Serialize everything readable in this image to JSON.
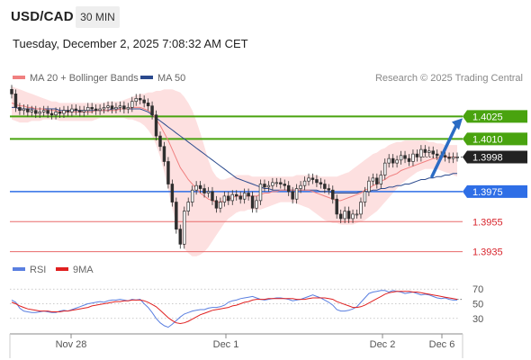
{
  "header": {
    "symbol": "USD/CAD",
    "timeframe": "30 MIN",
    "datetime": "Tuesday, December 2, 2025 7:08:32 AM CET"
  },
  "legend": {
    "ma20_label": "MA 20 + Bollinger Bands",
    "ma50_label": "MA 50",
    "rsi_label": "RSI",
    "rsi_ma_label": "9MA",
    "copyright": "Research © 2025 Trading Central"
  },
  "colors": {
    "ma20": "#f08080",
    "ma50": "#2b4a8e",
    "band_fill": "#fde0e0",
    "resistance": "#49a30f",
    "support": "#2e6ee6",
    "support_minor": "#e86a6a",
    "support_minor_text": "#d8262e",
    "price_box": "#222222",
    "candle": "#2e2e2e",
    "rsi": "#5a7fe0",
    "rsi_ma": "#e02020",
    "arrow": "#2b6cc4"
  },
  "chart_data": [
    {
      "type": "candlestick",
      "title": "USD/CAD",
      "ylim": [
        1.393,
        1.4045
      ],
      "x_ticks": [
        "Nov 28",
        "Dec 1",
        "Dec 2",
        "Dec 6"
      ],
      "current_price": 1.3998,
      "levels": [
        {
          "label": "1.4025",
          "value": 1.4025,
          "kind": "resistance"
        },
        {
          "label": "1.4010",
          "value": 1.401,
          "kind": "resistance"
        },
        {
          "label": "1.3975",
          "value": 1.3975,
          "kind": "support"
        },
        {
          "label": "1.3955",
          "value": 1.3955,
          "kind": "support_minor"
        },
        {
          "label": "1.3935",
          "value": 1.3935,
          "kind": "support_minor"
        }
      ],
      "close": [
        1.404,
        1.4031,
        1.4029,
        1.403,
        1.4028,
        1.4029,
        1.4027,
        1.4028,
        1.4029,
        1.4027,
        1.4026,
        1.4028,
        1.4027,
        1.4029,
        1.4028,
        1.403,
        1.4029,
        1.4028,
        1.4029,
        1.4031,
        1.403,
        1.4029,
        1.403,
        1.4031,
        1.4032,
        1.403,
        1.4031,
        1.4032,
        1.403,
        1.4031,
        1.4035,
        1.4037,
        1.4036,
        1.4034,
        1.4032,
        1.4026,
        1.4012,
        1.4005,
        1.3995,
        1.398,
        1.3968,
        1.395,
        1.394,
        1.3962,
        1.3968,
        1.3976,
        1.3979,
        1.3977,
        1.3974,
        1.3975,
        1.3969,
        1.3964,
        1.3968,
        1.3972,
        1.3969,
        1.3973,
        1.3972,
        1.397,
        1.3974,
        1.3972,
        1.3964,
        1.3969,
        1.398,
        1.3978,
        1.3979,
        1.3981,
        1.3981,
        1.398,
        1.3979,
        1.3975,
        1.397,
        1.3977,
        1.3979,
        1.3982,
        1.3984,
        1.3983,
        1.3981,
        1.398,
        1.3977,
        1.3976,
        1.397,
        1.396,
        1.3957,
        1.3962,
        1.3957,
        1.396,
        1.396,
        1.3968,
        1.3975,
        1.3982,
        1.3984,
        1.398,
        1.3986,
        1.3994,
        1.3997,
        1.3994,
        1.3996,
        1.3999,
        1.3997,
        1.3995,
        1.4,
        1.3998,
        1.4003,
        1.4001,
        1.4002,
        1.4,
        1.3999,
        1.3999,
        1.3998,
        1.3997,
        1.3998,
        1.3998
      ],
      "ma20": [
        1.4034,
        1.4033,
        1.4032,
        1.4032,
        1.4031,
        1.4031,
        1.403,
        1.403,
        1.403,
        1.4029,
        1.4029,
        1.4029,
        1.4028,
        1.4028,
        1.4028,
        1.4028,
        1.4028,
        1.4028,
        1.4028,
        1.4028,
        1.4028,
        1.4029,
        1.4029,
        1.4029,
        1.4029,
        1.4029,
        1.4029,
        1.403,
        1.403,
        1.403,
        1.4031,
        1.4031,
        1.4031,
        1.403,
        1.4029,
        1.4027,
        1.4023,
        1.4019,
        1.4014,
        1.4009,
        1.4003,
        1.3997,
        1.3991,
        1.3987,
        1.3983,
        1.398,
        1.3977,
        1.3974,
        1.3972,
        1.397,
        1.3969,
        1.3968,
        1.3968,
        1.3969,
        1.397,
        1.3971,
        1.3972,
        1.3972,
        1.3972,
        1.3972,
        1.3972,
        1.3972,
        1.3973,
        1.3974,
        1.3974,
        1.3975,
        1.3975,
        1.3976,
        1.3976,
        1.3976,
        1.3976,
        1.3976,
        1.3976,
        1.3976,
        1.3976,
        1.3975,
        1.3974,
        1.3973,
        1.3972,
        1.3971,
        1.397,
        1.3969,
        1.3969,
        1.397,
        1.3971,
        1.3972,
        1.3973,
        1.3974,
        1.3976,
        1.3977,
        1.3979,
        1.398,
        1.3982,
        1.3983,
        1.3985,
        1.3986,
        1.3987,
        1.3989,
        1.399,
        1.3991,
        1.3992,
        1.3993,
        1.3994,
        1.3995,
        1.3996,
        1.3997,
        1.3997,
        1.3998,
        1.3998,
        1.3998,
        1.3998,
        1.3998
      ],
      "band_upper": [
        1.4045,
        1.4044,
        1.4043,
        1.4042,
        1.4041,
        1.404,
        1.4039,
        1.4038,
        1.4037,
        1.4036,
        1.4035,
        1.4035,
        1.4034,
        1.4034,
        1.4034,
        1.4034,
        1.4034,
        1.4034,
        1.4034,
        1.4034,
        1.4034,
        1.4034,
        1.4034,
        1.4034,
        1.4035,
        1.4035,
        1.4035,
        1.4035,
        1.4036,
        1.4037,
        1.4038,
        1.4039,
        1.404,
        1.404,
        1.4041,
        1.4041,
        1.4042,
        1.4042,
        1.4043,
        1.4043,
        1.4043,
        1.4042,
        1.4041,
        1.4038,
        1.4034,
        1.4029,
        1.4022,
        1.4014,
        1.4005,
        1.3996,
        1.3989,
        1.3985,
        1.3983,
        1.3983,
        1.3984,
        1.3985,
        1.3986,
        1.3986,
        1.3986,
        1.3986,
        1.3985,
        1.3985,
        1.3985,
        1.3985,
        1.3985,
        1.3985,
        1.3985,
        1.3985,
        1.3985,
        1.3985,
        1.3985,
        1.3986,
        1.3986,
        1.3986,
        1.3986,
        1.3986,
        1.3986,
        1.3985,
        1.3985,
        1.3985,
        1.3985,
        1.3985,
        1.3986,
        1.3987,
        1.3988,
        1.399,
        1.3992,
        1.3994,
        1.3996,
        1.3998,
        1.4,
        1.4001,
        1.4003,
        1.4004,
        1.4006,
        1.4007,
        1.4008,
        1.4008,
        1.4009,
        1.4009,
        1.4009,
        1.4009,
        1.4009,
        1.4009,
        1.4008,
        1.4008,
        1.4007,
        1.4007,
        1.4006,
        1.4006,
        1.4006,
        1.4006
      ],
      "band_lower": [
        1.4023,
        1.4022,
        1.4021,
        1.4021,
        1.4021,
        1.4022,
        1.4022,
        1.4022,
        1.4023,
        1.4023,
        1.4023,
        1.4023,
        1.4022,
        1.4022,
        1.4022,
        1.4022,
        1.4022,
        1.4022,
        1.4022,
        1.4022,
        1.4022,
        1.4023,
        1.4024,
        1.4024,
        1.4024,
        1.4024,
        1.4024,
        1.4024,
        1.4024,
        1.4023,
        1.4023,
        1.4022,
        1.4021,
        1.4019,
        1.4016,
        1.4012,
        1.4006,
        1.3998,
        1.3988,
        1.3976,
        1.3964,
        1.3953,
        1.3943,
        1.3937,
        1.3934,
        1.3932,
        1.3932,
        1.3933,
        1.3935,
        1.3938,
        1.3942,
        1.3946,
        1.395,
        1.3954,
        1.3957,
        1.3959,
        1.3961,
        1.3962,
        1.3962,
        1.3963,
        1.3963,
        1.3963,
        1.3963,
        1.3964,
        1.3965,
        1.3966,
        1.3967,
        1.3968,
        1.3968,
        1.3968,
        1.3968,
        1.3967,
        1.3966,
        1.3965,
        1.3964,
        1.3962,
        1.396,
        1.3958,
        1.3956,
        1.3955,
        1.3954,
        1.3954,
        1.3953,
        1.3953,
        1.3953,
        1.3953,
        1.3954,
        1.3955,
        1.3956,
        1.3958,
        1.396,
        1.3962,
        1.3965,
        1.3968,
        1.3971,
        1.3974,
        1.3977,
        1.398,
        1.3982,
        1.3984,
        1.3986,
        1.3988,
        1.3989,
        1.399,
        1.399,
        1.399,
        1.399,
        1.3989,
        1.3988,
        1.3987,
        1.3986,
        1.3985
      ],
      "ma50": [
        1.4031,
        1.4031,
        1.403,
        1.403,
        1.403,
        1.403,
        1.403,
        1.403,
        1.403,
        1.403,
        1.403,
        1.403,
        1.4029,
        1.4029,
        1.4029,
        1.4029,
        1.4029,
        1.4029,
        1.4029,
        1.4029,
        1.4029,
        1.4029,
        1.4029,
        1.4029,
        1.4029,
        1.403,
        1.403,
        1.403,
        1.403,
        1.403,
        1.403,
        1.403,
        1.403,
        1.4029,
        1.4028,
        1.4026,
        1.4024,
        1.4022,
        1.402,
        1.4018,
        1.4016,
        1.4014,
        1.4012,
        1.401,
        1.4008,
        1.4006,
        1.4004,
        1.4002,
        1.4,
        1.3998,
        1.3996,
        1.3994,
        1.3992,
        1.399,
        1.3988,
        1.3986,
        1.3984,
        1.3983,
        1.3982,
        1.3981,
        1.398,
        1.3979,
        1.3978,
        1.3977,
        1.3977,
        1.3976,
        1.3976,
        1.3976,
        1.3976,
        1.3976,
        1.3976,
        1.3976,
        1.3976,
        1.3976,
        1.3976,
        1.3976,
        1.3976,
        1.3975,
        1.3975,
        1.3975,
        1.3974,
        1.3974,
        1.3974,
        1.3974,
        1.3974,
        1.3974,
        1.3974,
        1.3975,
        1.3975,
        1.3975,
        1.3976,
        1.3976,
        1.3977,
        1.3977,
        1.3978,
        1.3978,
        1.3979,
        1.3979,
        1.398,
        1.398,
        1.3981,
        1.3982,
        1.3983,
        1.3983,
        1.3984,
        1.3984,
        1.3985,
        1.3985,
        1.3986,
        1.3986,
        1.3987,
        1.3987
      ]
    },
    {
      "type": "line",
      "title": "RSI",
      "ylim": [
        15,
        85
      ],
      "y_ticks": [
        "70",
        "50",
        "30"
      ],
      "series": [
        {
          "name": "RSI",
          "values": [
            55,
            52,
            44,
            40,
            39,
            38,
            38,
            39,
            40,
            39,
            38,
            38,
            40,
            41,
            40,
            42,
            44,
            46,
            48,
            50,
            51,
            52,
            53,
            52,
            54,
            55,
            55,
            56,
            55,
            54,
            56,
            55,
            56,
            50,
            45,
            38,
            30,
            24,
            20,
            18,
            22,
            27,
            32,
            36,
            38,
            40,
            41,
            42,
            42,
            44,
            45,
            45,
            46,
            48,
            52,
            54,
            55,
            57,
            58,
            59,
            60,
            58,
            56,
            55,
            56,
            57,
            58,
            58,
            57,
            56,
            54,
            55,
            56,
            58,
            60,
            62,
            60,
            58,
            55,
            52,
            48,
            42,
            40,
            40,
            41,
            43,
            46,
            52,
            58,
            64,
            66,
            67,
            68,
            68,
            66,
            68,
            67,
            66,
            64,
            65,
            66,
            64,
            62,
            63,
            62,
            60,
            58,
            57,
            58,
            56,
            55,
            55
          ]
        },
        {
          "name": "9MA",
          "values": [
            52,
            50,
            47,
            45,
            43,
            42,
            41,
            40,
            40,
            40,
            39,
            39,
            39,
            40,
            40,
            41,
            42,
            43,
            44,
            45,
            47,
            48,
            49,
            50,
            51,
            52,
            53,
            53,
            54,
            54,
            55,
            55,
            55,
            54,
            52,
            49,
            46,
            41,
            36,
            31,
            27,
            24,
            23,
            24,
            26,
            29,
            32,
            35,
            37,
            39,
            41,
            42,
            43,
            44,
            45,
            47,
            48,
            50,
            52,
            53,
            55,
            56,
            56,
            56,
            57,
            57,
            57,
            57,
            57,
            57,
            57,
            56,
            56,
            56,
            57,
            58,
            58,
            58,
            58,
            57,
            56,
            53,
            51,
            49,
            47,
            45,
            45,
            46,
            48,
            51,
            54,
            57,
            60,
            63,
            65,
            66,
            67,
            67,
            67,
            67,
            66,
            66,
            65,
            64,
            63,
            62,
            61,
            60,
            59,
            58,
            57,
            56
          ]
        }
      ]
    }
  ]
}
